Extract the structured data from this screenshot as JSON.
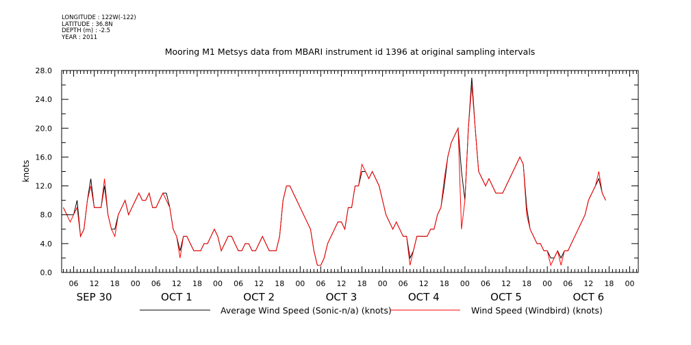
{
  "header": {
    "longitude": "LONGITUDE : 122W(-122)",
    "latitude": "LATITUDE : 36.8N",
    "depth": "DEPTH (m) : -2.5",
    "year": "YEAR : 2011"
  },
  "colors": {
    "series_black": "#000000",
    "series_red": "#ff0000"
  },
  "chart_data": {
    "type": "line",
    "title": "Mooring M1 Metsys data from MBARI instrument id 1396 at original sampling intervals",
    "ylabel": "knots",
    "xlabel": "",
    "ylim": [
      0,
      28
    ],
    "yticks": [
      0.0,
      4.0,
      8.0,
      12.0,
      16.0,
      20.0,
      24.0,
      28.0
    ],
    "ytick_labels": [
      "0.0",
      "4.0",
      "8.0",
      "12.0",
      "16.0",
      "20.0",
      "24.0",
      "28.0"
    ],
    "x_unit": "hours since 2011-09-30 00:00",
    "xlim": [
      2.5,
      170.5
    ],
    "xticks_hours": [
      6,
      12,
      18,
      24,
      30,
      36,
      42,
      48,
      54,
      60,
      66,
      72,
      78,
      84,
      90,
      96,
      102,
      108,
      114,
      120,
      126,
      132,
      138,
      144,
      150,
      156,
      162,
      168
    ],
    "xtick_labels": [
      "06",
      "12",
      "18",
      "00",
      "06",
      "12",
      "18",
      "00",
      "06",
      "12",
      "18",
      "00",
      "06",
      "12",
      "18",
      "00",
      "06",
      "12",
      "18",
      "00",
      "06",
      "12",
      "18",
      "00",
      "06",
      "12",
      "18",
      "00"
    ],
    "day_labels": [
      {
        "hour": 12,
        "label": "SEP 30"
      },
      {
        "hour": 36,
        "label": "OCT  1"
      },
      {
        "hour": 60,
        "label": "OCT  2"
      },
      {
        "hour": 84,
        "label": "OCT  3"
      },
      {
        "hour": 108,
        "label": "OCT  4"
      },
      {
        "hour": 132,
        "label": "OCT  5"
      },
      {
        "hour": 156,
        "label": "OCT  6"
      }
    ],
    "grid": false,
    "legend_position": "bottom",
    "series": [
      {
        "name": "Average Wind Speed (Sonic-n/a) (knots)",
        "color": "#000000",
        "points": [
          [
            3,
            9
          ],
          [
            4,
            8
          ],
          [
            5,
            8
          ],
          [
            6,
            8
          ],
          [
            7,
            10
          ],
          [
            8,
            5
          ],
          [
            9,
            6
          ],
          [
            10,
            10
          ],
          [
            11,
            13
          ],
          [
            12,
            9
          ],
          [
            13,
            9
          ],
          [
            14,
            9
          ],
          [
            15,
            12
          ],
          [
            16,
            8
          ],
          [
            17,
            6
          ],
          [
            18,
            6
          ],
          [
            19,
            8
          ],
          [
            20,
            9
          ],
          [
            21,
            10
          ],
          [
            22,
            8
          ],
          [
            23,
            9
          ],
          [
            24,
            10
          ],
          [
            25,
            11
          ],
          [
            26,
            10
          ],
          [
            27,
            10
          ],
          [
            28,
            11
          ],
          [
            29,
            9
          ],
          [
            30,
            9
          ],
          [
            31,
            10
          ],
          [
            32,
            11
          ],
          [
            33,
            11
          ],
          [
            34,
            9
          ],
          [
            35,
            6
          ],
          [
            36,
            5
          ],
          [
            37,
            3
          ],
          [
            38,
            5
          ],
          [
            39,
            5
          ],
          [
            40,
            4
          ],
          [
            41,
            3
          ],
          [
            42,
            3
          ],
          [
            43,
            3
          ],
          [
            44,
            4
          ],
          [
            45,
            4
          ],
          [
            46,
            5
          ],
          [
            47,
            6
          ],
          [
            48,
            5
          ],
          [
            49,
            3
          ],
          [
            50,
            4
          ],
          [
            51,
            5
          ],
          [
            52,
            5
          ],
          [
            53,
            4
          ],
          [
            54,
            3
          ],
          [
            55,
            3
          ],
          [
            56,
            4
          ],
          [
            57,
            4
          ],
          [
            58,
            3
          ],
          [
            59,
            3
          ],
          [
            60,
            4
          ],
          [
            61,
            5
          ],
          [
            62,
            4
          ],
          [
            63,
            3
          ],
          [
            64,
            3
          ],
          [
            65,
            3
          ],
          [
            66,
            5
          ],
          [
            67,
            10
          ],
          [
            68,
            12
          ],
          [
            69,
            12
          ],
          [
            70,
            11
          ],
          [
            71,
            10
          ],
          [
            72,
            9
          ],
          [
            73,
            8
          ],
          [
            74,
            7
          ],
          [
            75,
            6
          ],
          [
            76,
            3
          ],
          [
            77,
            1
          ],
          [
            78,
            1
          ],
          [
            79,
            2
          ],
          [
            80,
            4
          ],
          [
            81,
            5
          ],
          [
            82,
            6
          ],
          [
            83,
            7
          ],
          [
            84,
            7
          ],
          [
            85,
            6
          ],
          [
            86,
            9
          ],
          [
            87,
            9
          ],
          [
            88,
            12
          ],
          [
            89,
            12
          ],
          [
            90,
            14
          ],
          [
            91,
            14
          ],
          [
            92,
            13
          ],
          [
            93,
            14
          ],
          [
            94,
            13
          ],
          [
            95,
            12
          ],
          [
            96,
            10
          ],
          [
            97,
            8
          ],
          [
            98,
            7
          ],
          [
            99,
            6
          ],
          [
            100,
            7
          ],
          [
            101,
            6
          ],
          [
            102,
            5
          ],
          [
            103,
            5
          ],
          [
            104,
            2
          ],
          [
            105,
            3
          ],
          [
            106,
            5
          ],
          [
            107,
            5
          ],
          [
            108,
            5
          ],
          [
            109,
            5
          ],
          [
            110,
            6
          ],
          [
            111,
            6
          ],
          [
            112,
            8
          ],
          [
            113,
            9
          ],
          [
            114,
            12
          ],
          [
            115,
            16
          ],
          [
            116,
            18
          ],
          [
            117,
            19
          ],
          [
            118,
            20
          ],
          [
            119,
            14
          ],
          [
            120,
            10
          ],
          [
            121,
            20
          ],
          [
            122,
            27
          ],
          [
            123,
            20
          ],
          [
            124,
            14
          ],
          [
            125,
            13
          ],
          [
            126,
            12
          ],
          [
            127,
            13
          ],
          [
            128,
            12
          ],
          [
            129,
            11
          ],
          [
            130,
            11
          ],
          [
            131,
            11
          ],
          [
            132,
            12
          ],
          [
            133,
            13
          ],
          [
            134,
            14
          ],
          [
            135,
            15
          ],
          [
            136,
            16
          ],
          [
            137,
            15
          ],
          [
            138,
            9
          ],
          [
            139,
            6
          ],
          [
            140,
            5
          ],
          [
            141,
            4
          ],
          [
            142,
            4
          ],
          [
            143,
            3
          ],
          [
            144,
            3
          ],
          [
            145,
            2
          ],
          [
            146,
            2
          ],
          [
            147,
            3
          ],
          [
            148,
            2
          ],
          [
            149,
            3
          ],
          [
            150,
            3
          ],
          [
            151,
            4
          ],
          [
            152,
            5
          ],
          [
            153,
            6
          ],
          [
            154,
            7
          ],
          [
            155,
            8
          ],
          [
            156,
            10
          ],
          [
            157,
            11
          ],
          [
            158,
            12
          ],
          [
            159,
            13
          ],
          [
            160,
            11
          ],
          [
            161,
            10
          ]
        ]
      },
      {
        "name": "Wind Speed (Windbird) (knots)",
        "color": "#ff0000",
        "points": [
          [
            3,
            9
          ],
          [
            4,
            8
          ],
          [
            5,
            7
          ],
          [
            6,
            8
          ],
          [
            7,
            9
          ],
          [
            8,
            5
          ],
          [
            9,
            6
          ],
          [
            10,
            10
          ],
          [
            11,
            12
          ],
          [
            12,
            9
          ],
          [
            13,
            9
          ],
          [
            14,
            9
          ],
          [
            15,
            13
          ],
          [
            16,
            8
          ],
          [
            17,
            6
          ],
          [
            18,
            5
          ],
          [
            19,
            8
          ],
          [
            20,
            9
          ],
          [
            21,
            10
          ],
          [
            22,
            8
          ],
          [
            23,
            9
          ],
          [
            24,
            10
          ],
          [
            25,
            11
          ],
          [
            26,
            10
          ],
          [
            27,
            10
          ],
          [
            28,
            11
          ],
          [
            29,
            9
          ],
          [
            30,
            9
          ],
          [
            31,
            10
          ],
          [
            32,
            11
          ],
          [
            33,
            10
          ],
          [
            34,
            9
          ],
          [
            35,
            6
          ],
          [
            36,
            5
          ],
          [
            37,
            2
          ],
          [
            38,
            5
          ],
          [
            39,
            5
          ],
          [
            40,
            4
          ],
          [
            41,
            3
          ],
          [
            42,
            3
          ],
          [
            43,
            3
          ],
          [
            44,
            4
          ],
          [
            45,
            4
          ],
          [
            46,
            5
          ],
          [
            47,
            6
          ],
          [
            48,
            5
          ],
          [
            49,
            3
          ],
          [
            50,
            4
          ],
          [
            51,
            5
          ],
          [
            52,
            5
          ],
          [
            53,
            4
          ],
          [
            54,
            3
          ],
          [
            55,
            3
          ],
          [
            56,
            4
          ],
          [
            57,
            4
          ],
          [
            58,
            3
          ],
          [
            59,
            3
          ],
          [
            60,
            4
          ],
          [
            61,
            5
          ],
          [
            62,
            4
          ],
          [
            63,
            3
          ],
          [
            64,
            3
          ],
          [
            65,
            3
          ],
          [
            66,
            5
          ],
          [
            67,
            10
          ],
          [
            68,
            12
          ],
          [
            69,
            12
          ],
          [
            70,
            11
          ],
          [
            71,
            10
          ],
          [
            72,
            9
          ],
          [
            73,
            8
          ],
          [
            74,
            7
          ],
          [
            75,
            6
          ],
          [
            76,
            3
          ],
          [
            77,
            1
          ],
          [
            78,
            1
          ],
          [
            79,
            2
          ],
          [
            80,
            4
          ],
          [
            81,
            5
          ],
          [
            82,
            6
          ],
          [
            83,
            7
          ],
          [
            84,
            7
          ],
          [
            85,
            6
          ],
          [
            86,
            9
          ],
          [
            87,
            9
          ],
          [
            88,
            12
          ],
          [
            89,
            12
          ],
          [
            90,
            15
          ],
          [
            91,
            14
          ],
          [
            92,
            13
          ],
          [
            93,
            14
          ],
          [
            94,
            13
          ],
          [
            95,
            12
          ],
          [
            96,
            10
          ],
          [
            97,
            8
          ],
          [
            98,
            7
          ],
          [
            99,
            6
          ],
          [
            100,
            7
          ],
          [
            101,
            6
          ],
          [
            102,
            5
          ],
          [
            103,
            5
          ],
          [
            104,
            1
          ],
          [
            105,
            3
          ],
          [
            106,
            5
          ],
          [
            107,
            5
          ],
          [
            108,
            5
          ],
          [
            109,
            5
          ],
          [
            110,
            6
          ],
          [
            111,
            6
          ],
          [
            112,
            8
          ],
          [
            113,
            9
          ],
          [
            114,
            13
          ],
          [
            115,
            16
          ],
          [
            116,
            18
          ],
          [
            117,
            19
          ],
          [
            118,
            20
          ],
          [
            119,
            6
          ],
          [
            120,
            10
          ],
          [
            121,
            20
          ],
          [
            122,
            26
          ],
          [
            123,
            20
          ],
          [
            124,
            14
          ],
          [
            125,
            13
          ],
          [
            126,
            12
          ],
          [
            127,
            13
          ],
          [
            128,
            12
          ],
          [
            129,
            11
          ],
          [
            130,
            11
          ],
          [
            131,
            11
          ],
          [
            132,
            12
          ],
          [
            133,
            13
          ],
          [
            134,
            14
          ],
          [
            135,
            15
          ],
          [
            136,
            16
          ],
          [
            137,
            15
          ],
          [
            138,
            8
          ],
          [
            139,
            6
          ],
          [
            140,
            5
          ],
          [
            141,
            4
          ],
          [
            142,
            4
          ],
          [
            143,
            3
          ],
          [
            144,
            3
          ],
          [
            145,
            1
          ],
          [
            146,
            2
          ],
          [
            147,
            3
          ],
          [
            148,
            1
          ],
          [
            149,
            3
          ],
          [
            150,
            3
          ],
          [
            151,
            4
          ],
          [
            152,
            5
          ],
          [
            153,
            6
          ],
          [
            154,
            7
          ],
          [
            155,
            8
          ],
          [
            156,
            10
          ],
          [
            157,
            11
          ],
          [
            158,
            12
          ],
          [
            159,
            14
          ],
          [
            160,
            11
          ],
          [
            161,
            10
          ]
        ]
      }
    ]
  }
}
